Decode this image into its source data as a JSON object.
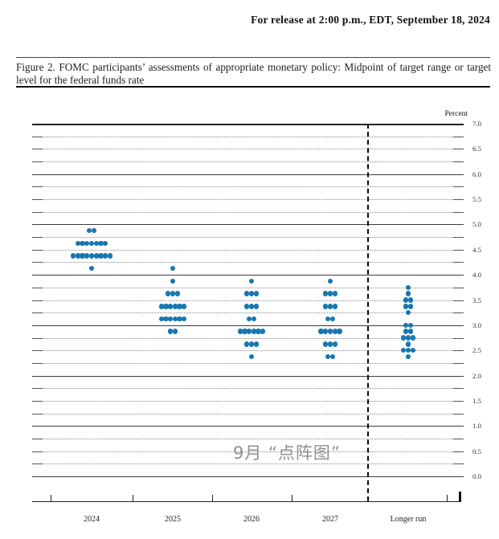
{
  "header": {
    "release_line": "For release at 2:00 p.m., EDT, September 18, 2024"
  },
  "figure": {
    "caption": "Figure 2.  FOMC participants’ assessments of appropriate monetary policy: Midpoint of target range or target level for the federal funds rate"
  },
  "watermark": {
    "text": "9月 “点阵图”"
  },
  "chart_data": {
    "type": "scatter",
    "subtype": "fomc-dot-plot",
    "ylabel": "Percent",
    "ylim": [
      0.0,
      7.0
    ],
    "y_gridline_step": 0.25,
    "y_label_step": 0.5,
    "gridline_style": "solid at integers, dotted elsewhere",
    "legend_position": "none",
    "dot_color": "#1777b0",
    "categories": [
      "2024",
      "2025",
      "2026",
      "2027",
      "Longer run"
    ],
    "series": [
      {
        "category": "2024",
        "dots": [
          {
            "rate": 4.875,
            "count": 2
          },
          {
            "rate": 4.625,
            "count": 7
          },
          {
            "rate": 4.375,
            "count": 9
          },
          {
            "rate": 4.125,
            "count": 1
          }
        ]
      },
      {
        "category": "2025",
        "dots": [
          {
            "rate": 4.125,
            "count": 1
          },
          {
            "rate": 3.875,
            "count": 1
          },
          {
            "rate": 3.625,
            "count": 3
          },
          {
            "rate": 3.375,
            "count": 6
          },
          {
            "rate": 3.125,
            "count": 6
          },
          {
            "rate": 2.875,
            "count": 2
          }
        ]
      },
      {
        "category": "2026",
        "dots": [
          {
            "rate": 3.875,
            "count": 1
          },
          {
            "rate": 3.625,
            "count": 3
          },
          {
            "rate": 3.375,
            "count": 3
          },
          {
            "rate": 3.125,
            "count": 2
          },
          {
            "rate": 2.875,
            "count": 6
          },
          {
            "rate": 2.625,
            "count": 3
          },
          {
            "rate": 2.375,
            "count": 1
          }
        ]
      },
      {
        "category": "2027",
        "dots": [
          {
            "rate": 3.875,
            "count": 1
          },
          {
            "rate": 3.625,
            "count": 3
          },
          {
            "rate": 3.375,
            "count": 3
          },
          {
            "rate": 3.125,
            "count": 2
          },
          {
            "rate": 2.875,
            "count": 5
          },
          {
            "rate": 2.625,
            "count": 3
          },
          {
            "rate": 2.375,
            "count": 2
          }
        ]
      },
      {
        "category": "Longer run",
        "dots": [
          {
            "rate": 3.75,
            "count": 1
          },
          {
            "rate": 3.625,
            "count": 1
          },
          {
            "rate": 3.5,
            "count": 2
          },
          {
            "rate": 3.375,
            "count": 2
          },
          {
            "rate": 3.25,
            "count": 1
          },
          {
            "rate": 3.0,
            "count": 2
          },
          {
            "rate": 2.875,
            "count": 2
          },
          {
            "rate": 2.75,
            "count": 3
          },
          {
            "rate": 2.625,
            "count": 1
          },
          {
            "rate": 2.5,
            "count": 3
          },
          {
            "rate": 2.375,
            "count": 1
          }
        ]
      }
    ]
  }
}
